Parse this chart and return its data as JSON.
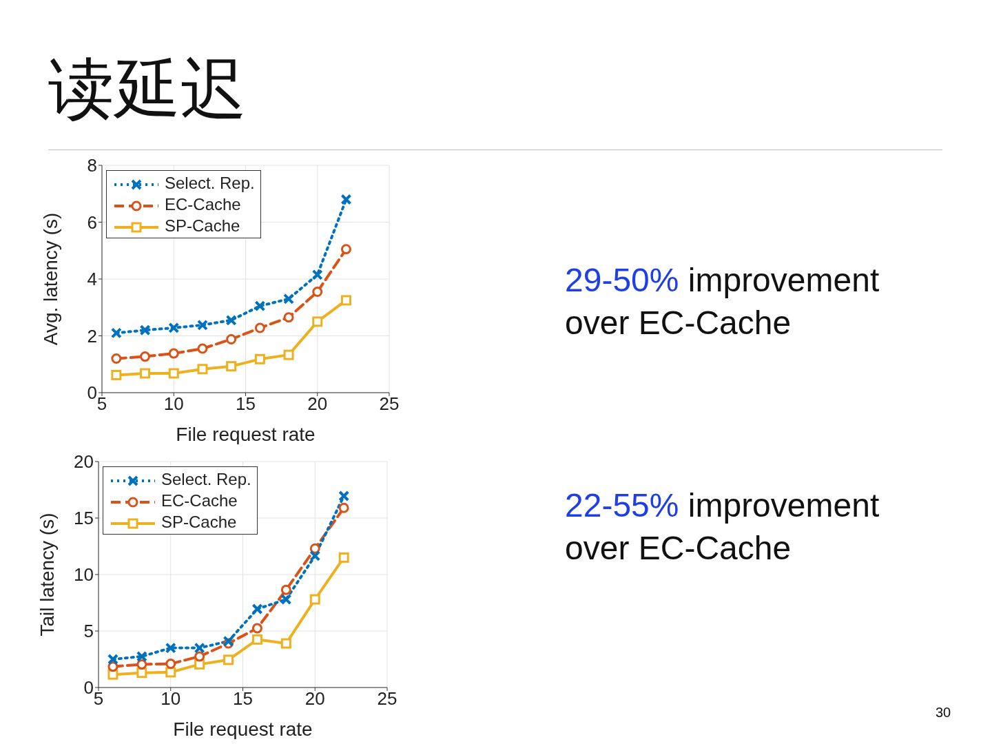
{
  "chart_data": [
    {
      "type": "line",
      "title": "读延迟",
      "xlabel": "File request rate",
      "ylabel": "Avg. latency (s)",
      "x": [
        6,
        8,
        10,
        12,
        14,
        16,
        18,
        20,
        22
      ],
      "xlim": [
        5,
        25
      ],
      "xticks": [
        5,
        10,
        15,
        20,
        25
      ],
      "ylim": [
        0,
        8
      ],
      "yticks": [
        0,
        2,
        4,
        6,
        8
      ],
      "grid": true,
      "legend": "top left",
      "series": [
        {
          "name": "Select. Rep.",
          "color": "#0072bd",
          "marker": "cross",
          "line_style": "dotted",
          "values": [
            2.1,
            2.2,
            2.28,
            2.38,
            2.55,
            3.05,
            3.3,
            4.15,
            6.8
          ]
        },
        {
          "name": "EC-Cache",
          "color": "#d95319",
          "marker": "circle",
          "line_style": "dashed",
          "values": [
            1.2,
            1.27,
            1.38,
            1.55,
            1.88,
            2.28,
            2.65,
            3.55,
            5.05
          ]
        },
        {
          "name": "SP-Cache",
          "color": "#edb120",
          "marker": "square",
          "line_style": "solid",
          "values": [
            0.62,
            0.68,
            0.68,
            0.83,
            0.93,
            1.18,
            1.33,
            2.5,
            3.25
          ]
        }
      ],
      "annotations": [
        "29-50% improvement over EC-Cache"
      ]
    },
    {
      "type": "line",
      "xlabel": "File request rate",
      "ylabel": "Tail latency (s)",
      "x": [
        6,
        8,
        10,
        12,
        14,
        16,
        18,
        20,
        22
      ],
      "xlim": [
        5,
        25
      ],
      "xticks": [
        5,
        10,
        15,
        20,
        25
      ],
      "ylim": [
        0,
        20
      ],
      "yticks": [
        0,
        5,
        10,
        15,
        20
      ],
      "grid": true,
      "legend": "top left",
      "series": [
        {
          "name": "Select. Rep.",
          "color": "#0072bd",
          "marker": "cross",
          "line_style": "dotted",
          "values": [
            2.5,
            2.75,
            3.5,
            3.5,
            4.1,
            6.95,
            7.8,
            11.65,
            16.95
          ]
        },
        {
          "name": "EC-Cache",
          "color": "#d95319",
          "marker": "circle",
          "line_style": "dashed",
          "values": [
            1.85,
            2.05,
            2.1,
            2.75,
            3.9,
            5.25,
            8.65,
            12.3,
            15.9
          ]
        },
        {
          "name": "SP-Cache",
          "color": "#edb120",
          "marker": "square",
          "line_style": "solid",
          "values": [
            1.15,
            1.3,
            1.35,
            2.05,
            2.45,
            4.25,
            3.9,
            7.8,
            11.5
          ]
        }
      ],
      "annotations": [
        "22-55% improvement over EC-Cache",
        "30"
      ]
    }
  ]
}
